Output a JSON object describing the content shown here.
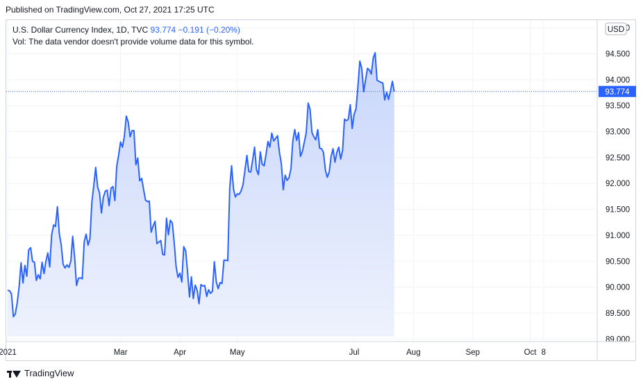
{
  "published": "Published on TradingView.com, Oct 27, 2021 17:25 UTC",
  "legend": {
    "symbol": "U.S. Dollar Currency Index, 1D, TVC",
    "last": "93.774",
    "change": "−0.191 (−0.20%)",
    "vol": "Vol: The data vendor doesn't provide volume data for this symbol."
  },
  "footer": {
    "brand": "TradingView"
  },
  "colors": {
    "line": "#2962ff",
    "fill_top": "#c8d6fb",
    "fill_bottom": "#eef2fd",
    "grid": "#f0f3fa",
    "axis_text": "#131722"
  },
  "chart_data": {
    "type": "area",
    "title": "",
    "xlabel": "",
    "ylabel": "",
    "currency": "USD",
    "last_price_label": "93.774",
    "ylim": [
      88.95,
      95.15
    ],
    "yticks": [
      89.0,
      89.5,
      90.0,
      90.5,
      91.0,
      91.5,
      92.0,
      92.5,
      93.0,
      93.5,
      94.0,
      94.5,
      95.0
    ],
    "ytick_labels": [
      "89.000",
      "89.500",
      "90.000",
      "90.500",
      "91.000",
      "91.500",
      "92.000",
      "92.500",
      "93.000",
      "93.500",
      "94.000",
      "94.500",
      "95.000"
    ],
    "xticks": [
      {
        "label": "2021",
        "t": 0
      },
      {
        "label": "Mar",
        "t": 59
      },
      {
        "label": "Apr",
        "t": 90
      },
      {
        "label": "May",
        "t": 120
      },
      {
        "label": "Jul",
        "t": 181
      },
      {
        "label": "Aug",
        "t": 212
      },
      {
        "label": "Sep",
        "t": 243
      },
      {
        "label": "Oct",
        "t": 273
      },
      {
        "label": "8",
        "t": 280
      }
    ],
    "x_range": [
      0,
      308
    ],
    "grid": true,
    "series": [
      {
        "values": [
          [
            0,
            89.94
          ],
          [
            1,
            89.93
          ],
          [
            2,
            89.87
          ],
          [
            3,
            89.43
          ],
          [
            4,
            89.48
          ],
          [
            5,
            89.7
          ],
          [
            6,
            90.0
          ],
          [
            7,
            90.47
          ],
          [
            8,
            90.08
          ],
          [
            9,
            90.42
          ],
          [
            10,
            90.21
          ],
          [
            11,
            90.72
          ],
          [
            12,
            90.76
          ],
          [
            13,
            90.5
          ],
          [
            14,
            90.48
          ],
          [
            15,
            90.13
          ],
          [
            16,
            90.24
          ],
          [
            17,
            90.16
          ],
          [
            18,
            90.48
          ],
          [
            19,
            90.26
          ],
          [
            20,
            90.5
          ],
          [
            21,
            90.66
          ],
          [
            22,
            90.39
          ],
          [
            23,
            91.01
          ],
          [
            24,
            91.2
          ],
          [
            25,
            91.17
          ],
          [
            26,
            91.55
          ],
          [
            27,
            91.03
          ],
          [
            28,
            90.81
          ],
          [
            29,
            90.44
          ],
          [
            30,
            90.37
          ],
          [
            31,
            90.43
          ],
          [
            32,
            90.38
          ],
          [
            33,
            90.5
          ],
          [
            34,
            90.98
          ],
          [
            35,
            90.57
          ],
          [
            36,
            90.03
          ],
          [
            37,
            90.17
          ],
          [
            38,
            90.18
          ],
          [
            39,
            90.16
          ],
          [
            40,
            90.88
          ],
          [
            41,
            91.02
          ],
          [
            42,
            90.81
          ],
          [
            43,
            90.93
          ],
          [
            44,
            91.64
          ],
          [
            45,
            91.95
          ],
          [
            46,
            92.31
          ],
          [
            47,
            91.93
          ],
          [
            48,
            91.82
          ],
          [
            49,
            91.43
          ],
          [
            50,
            91.73
          ],
          [
            51,
            91.85
          ],
          [
            52,
            91.87
          ],
          [
            53,
            91.57
          ],
          [
            54,
            91.91
          ],
          [
            55,
            91.94
          ],
          [
            56,
            91.67
          ],
          [
            57,
            92.33
          ],
          [
            58,
            92.55
          ],
          [
            59,
            92.8
          ],
          [
            60,
            92.7
          ],
          [
            61,
            92.91
          ],
          [
            62,
            93.3
          ],
          [
            63,
            93.18
          ],
          [
            64,
            92.9
          ],
          [
            65,
            93.02
          ],
          [
            66,
            93.02
          ],
          [
            67,
            92.36
          ],
          [
            68,
            92.49
          ],
          [
            69,
            92.05
          ],
          [
            70,
            92.1
          ],
          [
            71,
            91.89
          ],
          [
            72,
            91.68
          ],
          [
            73,
            91.65
          ],
          [
            74,
            91.66
          ],
          [
            75,
            91.06
          ],
          [
            76,
            91.18
          ],
          [
            77,
            91.27
          ],
          [
            78,
            90.84
          ],
          [
            79,
            90.87
          ],
          [
            80,
            90.9
          ],
          [
            81,
            90.63
          ],
          [
            82,
            90.62
          ],
          [
            83,
            91.33
          ],
          [
            84,
            91.01
          ],
          [
            85,
            91.29
          ],
          [
            86,
            91.24
          ],
          [
            87,
            90.87
          ],
          [
            88,
            90.4
          ],
          [
            89,
            90.19
          ],
          [
            90,
            90.27
          ],
          [
            91,
            90.1
          ],
          [
            92,
            90.78
          ],
          [
            93,
            90.7
          ],
          [
            94,
            90.29
          ],
          [
            95,
            89.81
          ],
          [
            96,
            90.2
          ],
          [
            97,
            89.78
          ],
          [
            98,
            90.04
          ],
          [
            99,
            89.94
          ],
          [
            100,
            89.68
          ],
          [
            101,
            90.05
          ],
          [
            102,
            90.02
          ],
          [
            103,
            90.03
          ],
          [
            104,
            89.82
          ],
          [
            105,
            89.95
          ],
          [
            106,
            89.88
          ],
          [
            107,
            89.92
          ],
          [
            108,
            90.49
          ],
          [
            109,
            90.1
          ],
          [
            110,
            89.97
          ],
          [
            111,
            90.09
          ],
          [
            112,
            90.07
          ],
          [
            113,
            90.52
          ],
          [
            114,
            90.52
          ],
          [
            115,
            90.51
          ],
          [
            116,
            91.9
          ],
          [
            117,
            92.34
          ],
          [
            118,
            91.89
          ],
          [
            119,
            91.74
          ],
          [
            120,
            91.8
          ],
          [
            121,
            91.79
          ],
          [
            122,
            91.86
          ],
          [
            123,
            91.98
          ],
          [
            124,
            92.26
          ],
          [
            125,
            92.54
          ],
          [
            126,
            92.23
          ],
          [
            127,
            92.22
          ],
          [
            128,
            92.45
          ],
          [
            129,
            92.7
          ],
          [
            130,
            92.27
          ],
          [
            131,
            92.17
          ],
          [
            132,
            92.61
          ],
          [
            133,
            92.37
          ],
          [
            134,
            92.34
          ],
          [
            135,
            92.56
          ],
          [
            136,
            92.81
          ],
          [
            137,
            92.7
          ],
          [
            138,
            92.97
          ],
          [
            139,
            92.82
          ],
          [
            140,
            92.87
          ],
          [
            141,
            92.92
          ],
          [
            142,
            92.6
          ],
          [
            143,
            92.38
          ],
          [
            144,
            91.88
          ],
          [
            145,
            92.16
          ],
          [
            146,
            92.06
          ],
          [
            147,
            92.11
          ],
          [
            148,
            92.28
          ],
          [
            149,
            92.82
          ],
          [
            150,
            93.04
          ],
          [
            151,
            92.83
          ],
          [
            152,
            92.98
          ],
          [
            153,
            92.52
          ],
          [
            154,
            92.62
          ],
          [
            155,
            92.8
          ],
          [
            156,
            92.98
          ],
          [
            157,
            93.55
          ],
          [
            158,
            93.43
          ],
          [
            159,
            92.98
          ],
          [
            160,
            92.9
          ],
          [
            161,
            92.84
          ],
          [
            162,
            93.04
          ],
          [
            163,
            92.68
          ],
          [
            164,
            92.67
          ],
          [
            165,
            92.6
          ],
          [
            166,
            92.26
          ],
          [
            167,
            92.12
          ],
          [
            168,
            92.22
          ],
          [
            169,
            92.52
          ],
          [
            170,
            92.67
          ],
          [
            171,
            92.41
          ],
          [
            172,
            92.6
          ],
          [
            173,
            92.7
          ],
          [
            174,
            92.47
          ],
          [
            175,
            92.64
          ],
          [
            176,
            93.24
          ],
          [
            177,
            93.21
          ],
          [
            178,
            93.24
          ],
          [
            179,
            93.52
          ],
          [
            180,
            93.06
          ],
          [
            181,
            93.33
          ],
          [
            182,
            93.44
          ],
          [
            183,
            93.86
          ],
          [
            184,
            94.36
          ],
          [
            185,
            94.22
          ],
          [
            186,
            93.77
          ],
          [
            187,
            94.0
          ],
          [
            188,
            94.22
          ],
          [
            189,
            94.19
          ],
          [
            190,
            94.11
          ],
          [
            191,
            94.42
          ],
          [
            192,
            94.52
          ],
          [
            193,
            93.99
          ],
          [
            194,
            93.97
          ],
          [
            195,
            93.95
          ],
          [
            196,
            93.94
          ],
          [
            197,
            93.61
          ],
          [
            198,
            93.76
          ],
          [
            199,
            93.62
          ],
          [
            200,
            93.78
          ],
          [
            201,
            93.97
          ],
          [
            202,
            93.77
          ]
        ]
      }
    ]
  }
}
